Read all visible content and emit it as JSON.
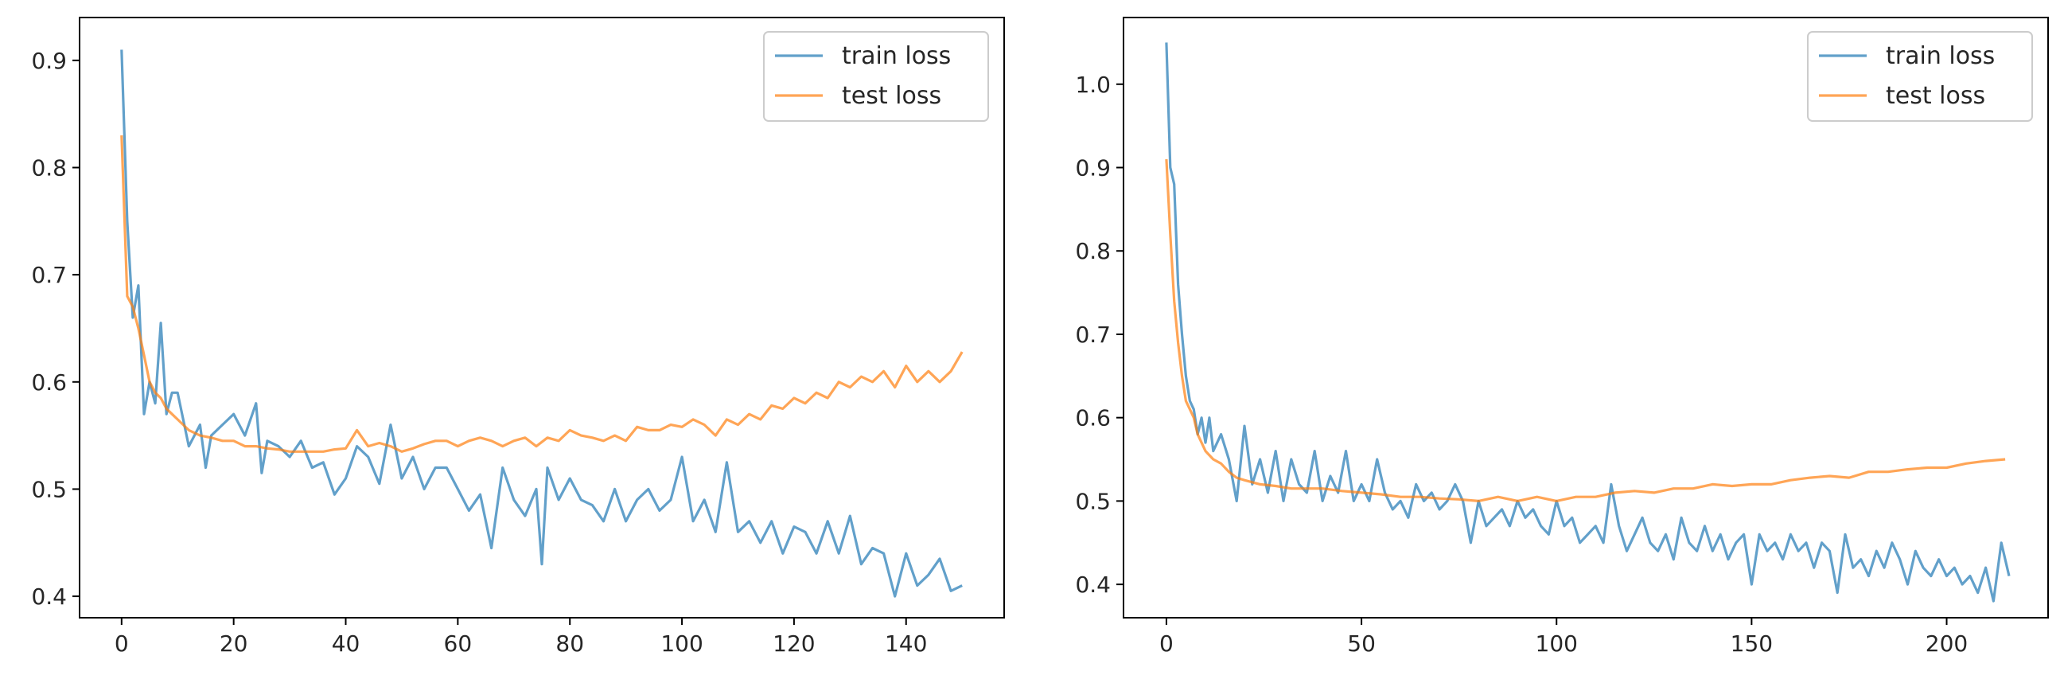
{
  "chart_data": [
    {
      "type": "line",
      "title": "",
      "xlabel": "",
      "ylabel": "",
      "xlim": [
        -7.5,
        157.5
      ],
      "ylim": [
        0.38,
        0.94
      ],
      "x_ticks": [
        0,
        20,
        40,
        60,
        80,
        100,
        120,
        140
      ],
      "y_ticks": [
        0.4,
        0.5,
        0.6,
        0.7,
        0.8,
        0.9
      ],
      "x_tick_labels": [
        "0",
        "20",
        "40",
        "60",
        "80",
        "100",
        "120",
        "140"
      ],
      "y_tick_labels": [
        "0.4",
        "0.5",
        "0.6",
        "0.7",
        "0.8",
        "0.9"
      ],
      "grid": false,
      "legend_position": "top-right",
      "series": [
        {
          "name": "train loss",
          "color": "#1f77b4",
          "x": [
            0,
            1,
            2,
            3,
            4,
            5,
            6,
            7,
            8,
            9,
            10,
            12,
            14,
            15,
            16,
            18,
            20,
            22,
            24,
            25,
            26,
            28,
            30,
            32,
            34,
            36,
            38,
            40,
            42,
            44,
            46,
            48,
            50,
            52,
            54,
            56,
            58,
            60,
            62,
            64,
            66,
            68,
            70,
            72,
            74,
            75,
            76,
            78,
            80,
            82,
            84,
            86,
            88,
            90,
            92,
            94,
            96,
            98,
            100,
            102,
            104,
            106,
            108,
            110,
            112,
            114,
            116,
            118,
            120,
            122,
            124,
            126,
            128,
            130,
            132,
            134,
            136,
            138,
            140,
            142,
            144,
            146,
            148,
            150
          ],
          "values": [
            0.91,
            0.75,
            0.66,
            0.69,
            0.57,
            0.6,
            0.58,
            0.655,
            0.57,
            0.59,
            0.59,
            0.54,
            0.56,
            0.52,
            0.55,
            0.56,
            0.57,
            0.55,
            0.58,
            0.515,
            0.545,
            0.54,
            0.53,
            0.545,
            0.52,
            0.525,
            0.495,
            0.51,
            0.54,
            0.53,
            0.505,
            0.56,
            0.51,
            0.53,
            0.5,
            0.52,
            0.52,
            0.5,
            0.48,
            0.495,
            0.445,
            0.52,
            0.49,
            0.475,
            0.5,
            0.43,
            0.52,
            0.49,
            0.51,
            0.49,
            0.485,
            0.47,
            0.5,
            0.47,
            0.49,
            0.5,
            0.48,
            0.49,
            0.53,
            0.47,
            0.49,
            0.46,
            0.525,
            0.46,
            0.47,
            0.45,
            0.47,
            0.44,
            0.465,
            0.46,
            0.44,
            0.47,
            0.44,
            0.475,
            0.43,
            0.445,
            0.44,
            0.4,
            0.44,
            0.41,
            0.42,
            0.435,
            0.405,
            0.41
          ]
        },
        {
          "name": "test loss",
          "color": "#ff7f0e",
          "x": [
            0,
            1,
            2,
            3,
            4,
            5,
            6,
            7,
            8,
            9,
            10,
            12,
            14,
            16,
            18,
            20,
            22,
            24,
            26,
            28,
            30,
            32,
            34,
            36,
            38,
            40,
            42,
            44,
            46,
            48,
            50,
            52,
            54,
            56,
            58,
            60,
            62,
            64,
            66,
            68,
            70,
            72,
            74,
            76,
            78,
            80,
            82,
            84,
            86,
            88,
            90,
            92,
            94,
            96,
            98,
            100,
            102,
            104,
            106,
            108,
            110,
            112,
            114,
            116,
            118,
            120,
            122,
            124,
            126,
            128,
            130,
            132,
            134,
            136,
            138,
            140,
            142,
            144,
            146,
            148,
            150
          ],
          "values": [
            0.83,
            0.68,
            0.67,
            0.65,
            0.625,
            0.6,
            0.59,
            0.585,
            0.575,
            0.57,
            0.565,
            0.555,
            0.55,
            0.548,
            0.545,
            0.545,
            0.54,
            0.54,
            0.538,
            0.537,
            0.535,
            0.535,
            0.535,
            0.535,
            0.537,
            0.538,
            0.555,
            0.54,
            0.543,
            0.54,
            0.535,
            0.538,
            0.542,
            0.545,
            0.545,
            0.54,
            0.545,
            0.548,
            0.545,
            0.54,
            0.545,
            0.548,
            0.54,
            0.548,
            0.545,
            0.555,
            0.55,
            0.548,
            0.545,
            0.55,
            0.545,
            0.558,
            0.555,
            0.555,
            0.56,
            0.558,
            0.565,
            0.56,
            0.55,
            0.565,
            0.56,
            0.57,
            0.565,
            0.578,
            0.575,
            0.585,
            0.58,
            0.59,
            0.585,
            0.6,
            0.595,
            0.605,
            0.6,
            0.61,
            0.595,
            0.615,
            0.6,
            0.61,
            0.6,
            0.61,
            0.628
          ]
        }
      ]
    },
    {
      "type": "line",
      "title": "",
      "xlabel": "",
      "ylabel": "",
      "xlim": [
        -11,
        226
      ],
      "ylim": [
        0.36,
        1.08
      ],
      "x_ticks": [
        0,
        50,
        100,
        150,
        200
      ],
      "y_ticks": [
        0.4,
        0.5,
        0.6,
        0.7,
        0.8,
        0.9,
        1.0
      ],
      "x_tick_labels": [
        "0",
        "50",
        "100",
        "150",
        "200"
      ],
      "y_tick_labels": [
        "0.4",
        "0.5",
        "0.6",
        "0.7",
        "0.8",
        "0.9",
        "1.0"
      ],
      "grid": false,
      "legend_position": "top-right",
      "series": [
        {
          "name": "train loss",
          "color": "#1f77b4",
          "x": [
            0,
            1,
            2,
            3,
            4,
            5,
            6,
            7,
            8,
            9,
            10,
            11,
            12,
            14,
            16,
            18,
            20,
            22,
            24,
            26,
            28,
            30,
            32,
            34,
            36,
            38,
            40,
            42,
            44,
            46,
            48,
            50,
            52,
            54,
            56,
            58,
            60,
            62,
            64,
            66,
            68,
            70,
            72,
            74,
            76,
            78,
            80,
            82,
            84,
            86,
            88,
            90,
            92,
            94,
            96,
            98,
            100,
            102,
            104,
            106,
            108,
            110,
            112,
            114,
            116,
            118,
            120,
            122,
            124,
            126,
            128,
            130,
            132,
            134,
            136,
            138,
            140,
            142,
            144,
            146,
            148,
            150,
            152,
            154,
            156,
            158,
            160,
            162,
            164,
            166,
            168,
            170,
            172,
            174,
            176,
            178,
            180,
            182,
            184,
            186,
            188,
            190,
            192,
            194,
            196,
            198,
            200,
            202,
            204,
            206,
            208,
            210,
            212,
            214,
            216
          ],
          "values": [
            1.05,
            0.9,
            0.88,
            0.76,
            0.7,
            0.65,
            0.62,
            0.61,
            0.58,
            0.6,
            0.57,
            0.6,
            0.56,
            0.58,
            0.55,
            0.5,
            0.59,
            0.52,
            0.55,
            0.51,
            0.56,
            0.5,
            0.55,
            0.52,
            0.51,
            0.56,
            0.5,
            0.53,
            0.51,
            0.56,
            0.5,
            0.52,
            0.5,
            0.55,
            0.51,
            0.49,
            0.5,
            0.48,
            0.52,
            0.5,
            0.51,
            0.49,
            0.5,
            0.52,
            0.5,
            0.45,
            0.5,
            0.47,
            0.48,
            0.49,
            0.47,
            0.5,
            0.48,
            0.49,
            0.47,
            0.46,
            0.5,
            0.47,
            0.48,
            0.45,
            0.46,
            0.47,
            0.45,
            0.52,
            0.47,
            0.44,
            0.46,
            0.48,
            0.45,
            0.44,
            0.46,
            0.43,
            0.48,
            0.45,
            0.44,
            0.47,
            0.44,
            0.46,
            0.43,
            0.45,
            0.46,
            0.4,
            0.46,
            0.44,
            0.45,
            0.43,
            0.46,
            0.44,
            0.45,
            0.42,
            0.45,
            0.44,
            0.39,
            0.46,
            0.42,
            0.43,
            0.41,
            0.44,
            0.42,
            0.45,
            0.43,
            0.4,
            0.44,
            0.42,
            0.41,
            0.43,
            0.41,
            0.42,
            0.4,
            0.41,
            0.39,
            0.42,
            0.38,
            0.45,
            0.41
          ]
        },
        {
          "name": "test loss",
          "color": "#ff7f0e",
          "x": [
            0,
            1,
            2,
            3,
            4,
            5,
            6,
            7,
            8,
            9,
            10,
            12,
            14,
            16,
            18,
            20,
            24,
            28,
            32,
            36,
            40,
            45,
            50,
            55,
            60,
            65,
            70,
            75,
            80,
            85,
            90,
            95,
            100,
            105,
            110,
            115,
            120,
            125,
            130,
            135,
            140,
            145,
            150,
            155,
            160,
            165,
            170,
            175,
            180,
            185,
            190,
            195,
            200,
            205,
            210,
            215
          ],
          "values": [
            0.91,
            0.82,
            0.74,
            0.69,
            0.65,
            0.62,
            0.61,
            0.6,
            0.58,
            0.57,
            0.56,
            0.55,
            0.545,
            0.535,
            0.528,
            0.525,
            0.52,
            0.518,
            0.515,
            0.515,
            0.515,
            0.512,
            0.51,
            0.508,
            0.505,
            0.505,
            0.503,
            0.502,
            0.5,
            0.505,
            0.5,
            0.505,
            0.5,
            0.505,
            0.505,
            0.51,
            0.512,
            0.51,
            0.515,
            0.515,
            0.52,
            0.518,
            0.52,
            0.52,
            0.525,
            0.528,
            0.53,
            0.528,
            0.535,
            0.535,
            0.538,
            0.54,
            0.54,
            0.545,
            0.548,
            0.55
          ]
        }
      ]
    }
  ]
}
